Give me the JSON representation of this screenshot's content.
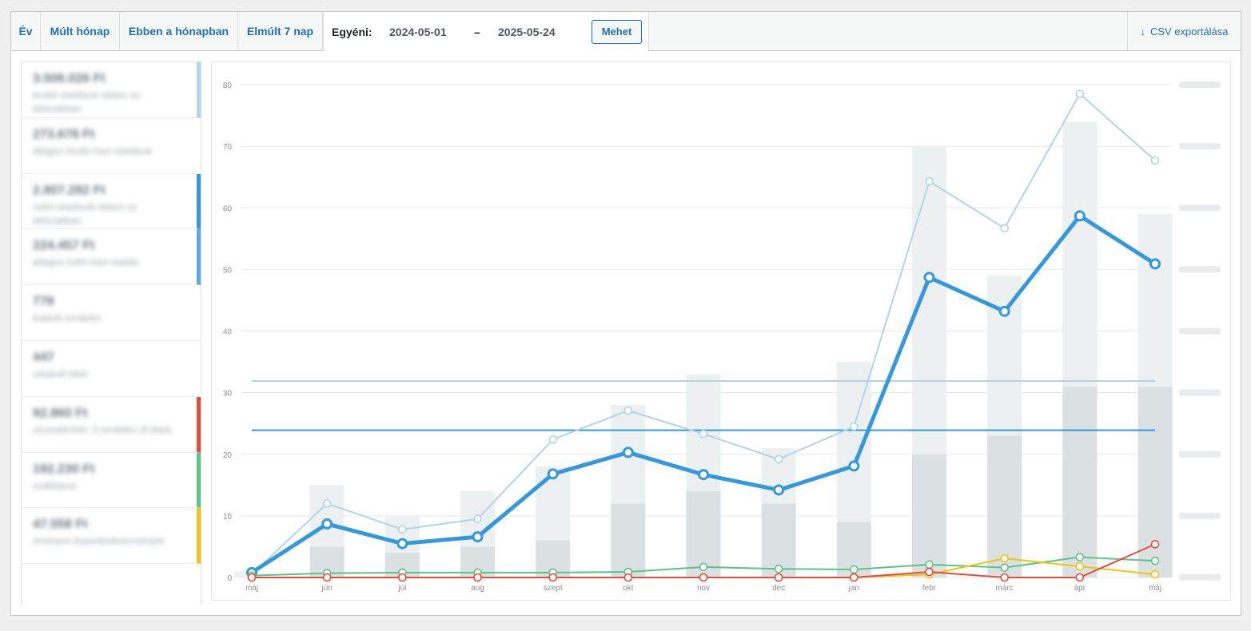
{
  "tabs": [
    {
      "label": "Év"
    },
    {
      "label": "Múlt hónap"
    },
    {
      "label": "Ebben a hónapban"
    },
    {
      "label": "Elmúlt 7 nap"
    }
  ],
  "custom_range": {
    "label": "Egyéni:",
    "from": "2024-05-01",
    "separator": "–",
    "to": "2025-05-24",
    "go_label": "Mehet"
  },
  "export": {
    "label": "CSV exportálása",
    "icon": "download-arrow-icon"
  },
  "legend": [
    {
      "amount": "3.506.026 Ft",
      "desc": "bruttó eladások ebben az időszakban",
      "color": "#b1d4ea"
    },
    {
      "amount": "273.678 Ft",
      "desc": "átlagos bruttó havi eladások",
      "color": "#ffffff"
    },
    {
      "amount": "2.807.282 Ft",
      "desc": "nettó eladások ebben az időszakban",
      "color": "#3498db"
    },
    {
      "amount": "224.457 Ft",
      "desc": "átlagos nettó havi eladás",
      "color": "#5aa9e6"
    },
    {
      "amount": "778",
      "desc": "leadott rendelés",
      "color": "#ffffff"
    },
    {
      "amount": "447",
      "desc": "vásárolt tétel",
      "color": "#ffffff"
    },
    {
      "amount": "92.860 Ft",
      "desc": "visszatérített: 3 rendelés (4 tétel)",
      "color": "#e74c3c"
    },
    {
      "amount": "192.230 Ft",
      "desc": "szállításra",
      "color": "#5cc488"
    },
    {
      "amount": "47.558 Ft",
      "desc": "érvényes kuponkedvezmények",
      "color": "#f1c40f"
    }
  ],
  "chart_data": {
    "type": "line",
    "categories": [
      "máj",
      "jún",
      "júl",
      "aug",
      "szept",
      "okt",
      "nov",
      "dec",
      "jan",
      "febr",
      "márc",
      "ápr",
      "máj"
    ],
    "ylim": [
      0,
      80
    ],
    "yticks": [
      0,
      10,
      20,
      30,
      40,
      50,
      60,
      70,
      80
    ],
    "bars": [
      {
        "name": "orders",
        "color": "#ecf0f1",
        "values": [
          1,
          15,
          10,
          14,
          18,
          28,
          33,
          21,
          35,
          70,
          49,
          74,
          59
        ]
      },
      {
        "name": "items",
        "color": "#dbe1e3",
        "values": [
          0,
          5,
          4,
          5,
          6,
          12,
          14,
          12,
          9,
          20,
          23,
          31,
          31
        ]
      }
    ],
    "series": [
      {
        "color": "#b1d4ea",
        "width": 2,
        "values": [
          0.5,
          12,
          7.8,
          9.5,
          22.4,
          27.1,
          23.3,
          19.2,
          24.5,
          64.3,
          56.7,
          78.5,
          67.7
        ]
      },
      {
        "color": "#3498db",
        "width": 5,
        "values": [
          0.8,
          8.7,
          5.5,
          6.6,
          16.8,
          20.3,
          16.7,
          14.2,
          18.1,
          48.7,
          43.2,
          58.7,
          50.9
        ]
      },
      {
        "color": "#5cc488",
        "width": 2,
        "values": [
          0.3,
          0.7,
          0.8,
          0.8,
          0.8,
          0.9,
          1.7,
          1.4,
          1.3,
          2.1,
          1.6,
          3.3,
          2.7
        ]
      },
      {
        "color": "#f1c40f",
        "width": 2,
        "values": [
          0,
          0,
          0,
          0,
          0,
          0,
          0,
          0,
          0,
          0.5,
          3.1,
          1.8,
          0.5
        ]
      },
      {
        "color": "#e74c3c",
        "width": 2,
        "values": [
          0,
          0,
          0,
          0,
          0,
          0,
          0,
          0,
          0,
          0.9,
          0,
          0,
          5.4
        ]
      }
    ],
    "averages": [
      {
        "color": "#b1d4ea",
        "value": 31.9
      },
      {
        "color": "#3498db",
        "value": 23.9
      }
    ]
  }
}
